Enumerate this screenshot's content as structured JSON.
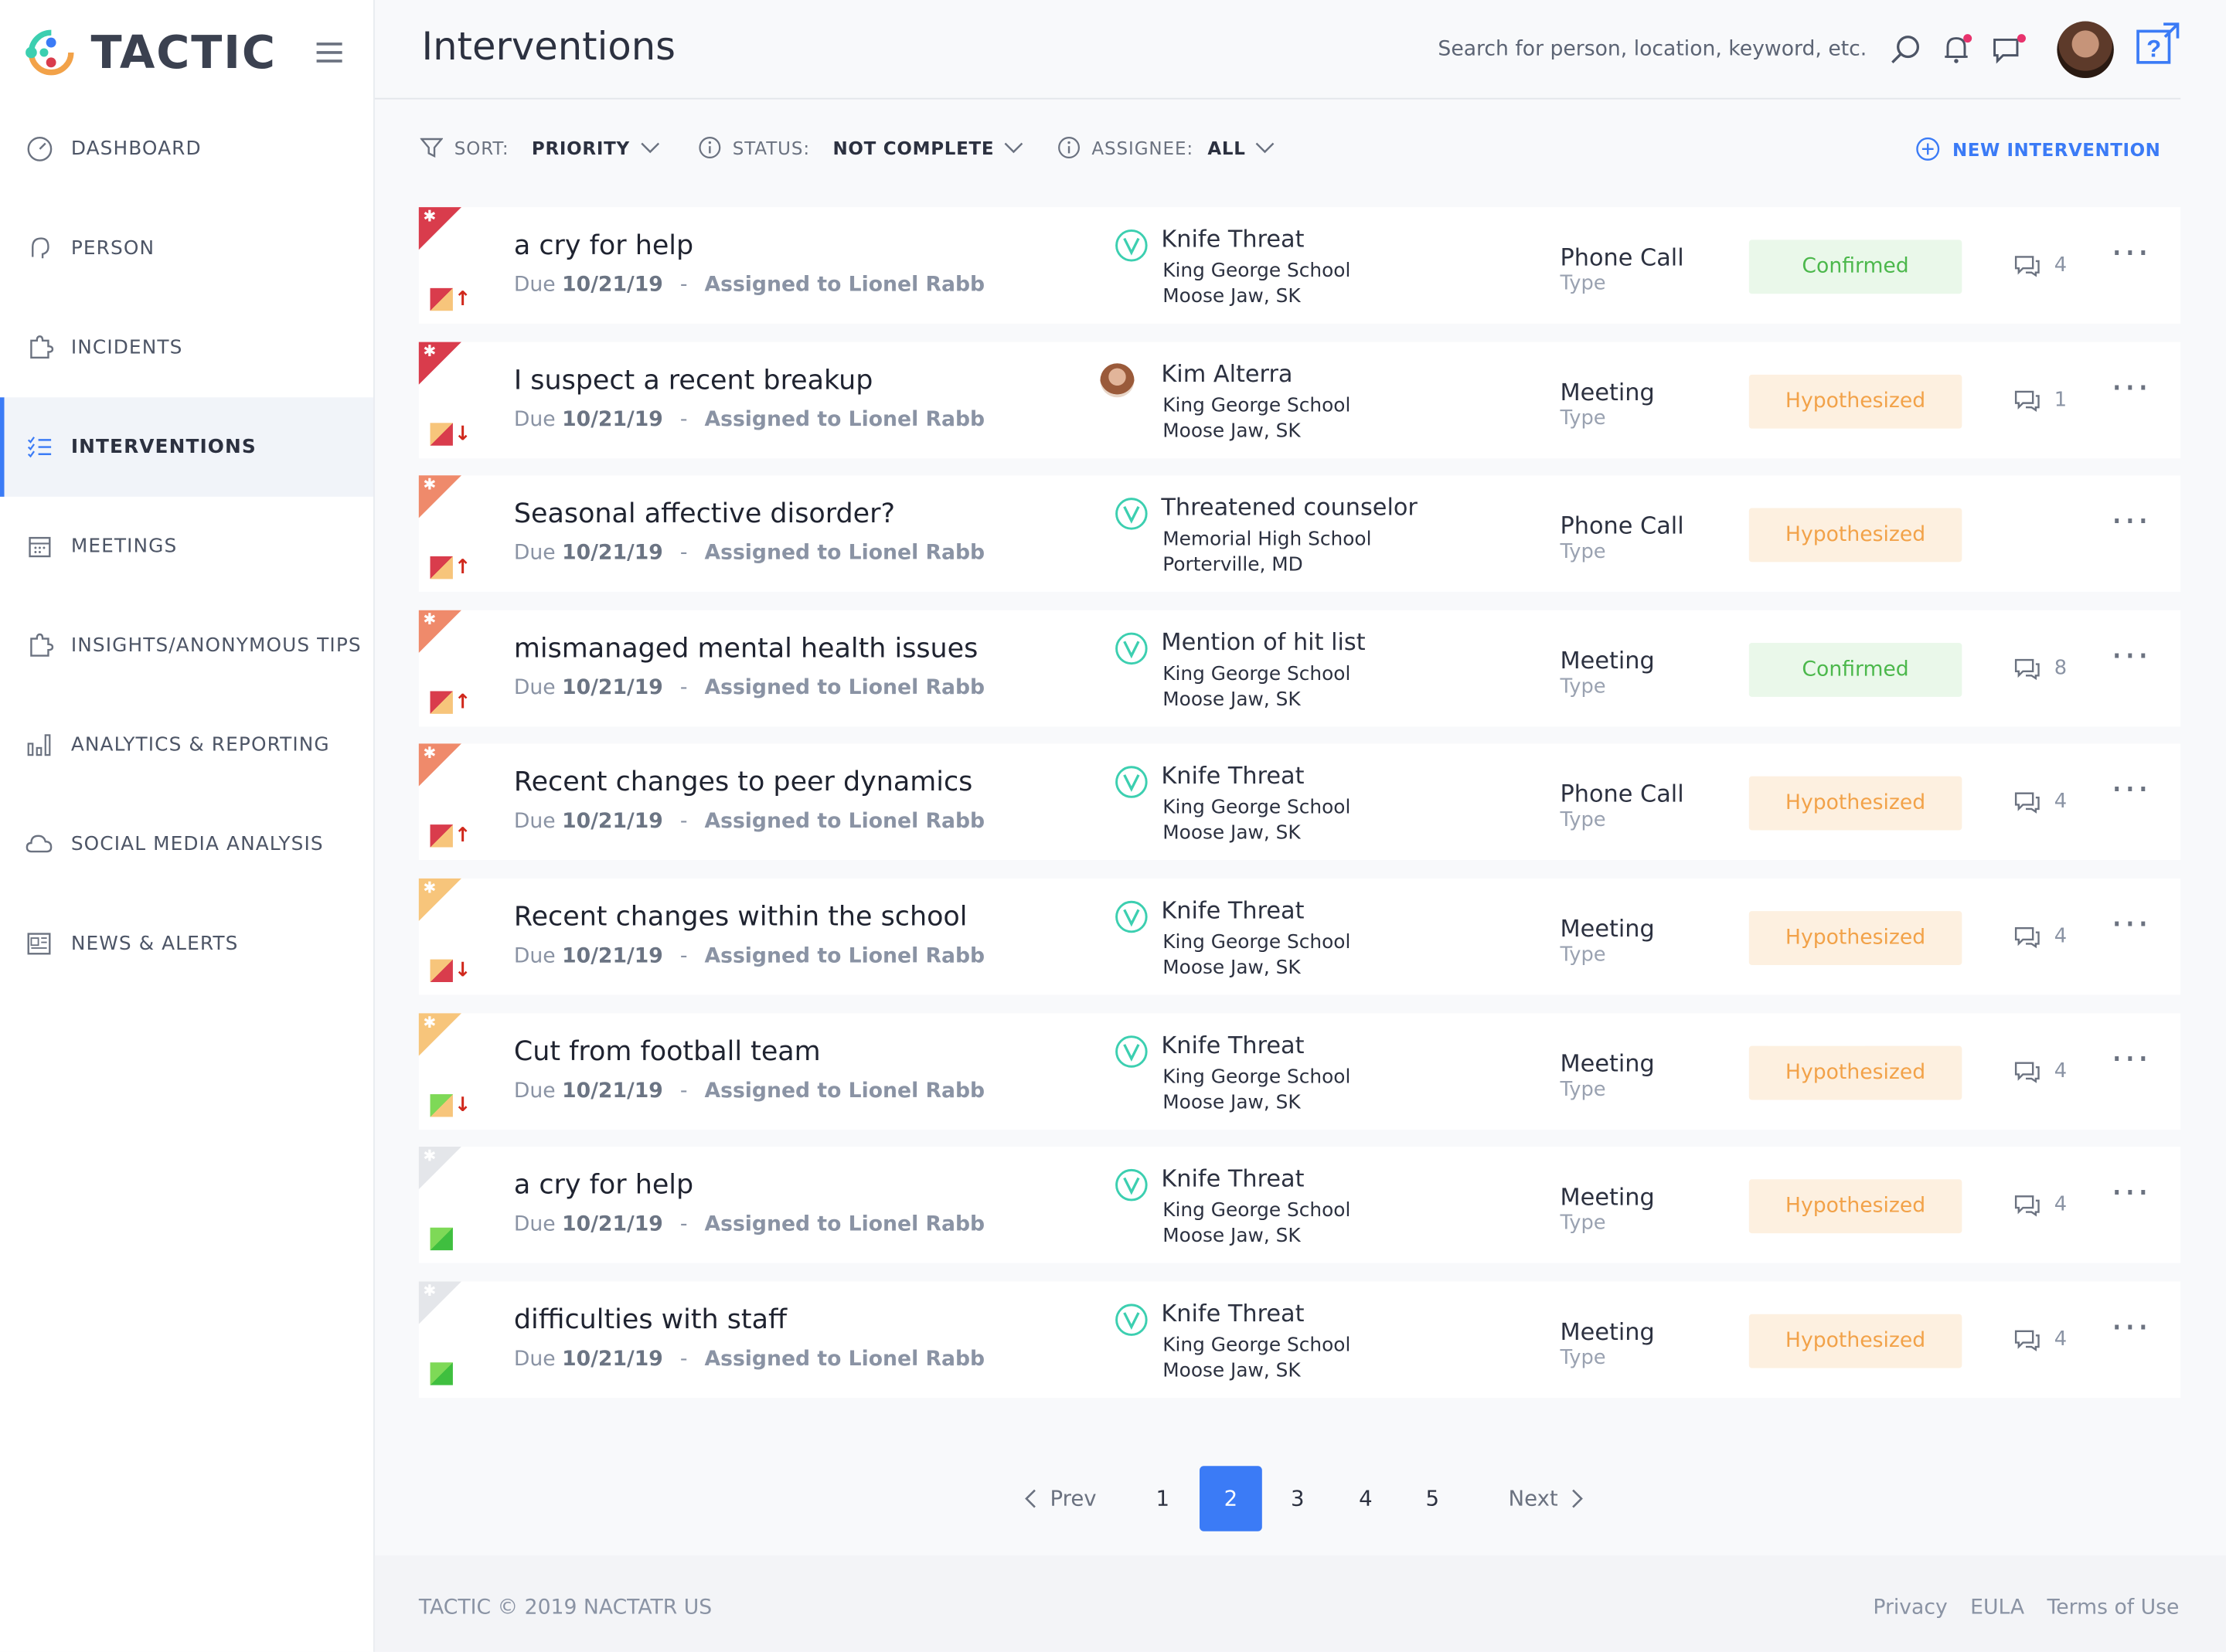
{
  "app": {
    "name": "TACTIC"
  },
  "sidebar": {
    "items": [
      {
        "label": "DASHBOARD",
        "icon": "dashboard-gauge-icon"
      },
      {
        "label": "PERSON",
        "icon": "person-head-icon"
      },
      {
        "label": "INCIDENTS",
        "icon": "incidents-puzzle-icon"
      },
      {
        "label": "INTERVENTIONS",
        "icon": "interventions-list-icon",
        "active": true
      },
      {
        "label": "MEETINGS",
        "icon": "calendar-icon"
      },
      {
        "label": "INSIGHTS/ANONYMOUS TIPS",
        "icon": "insights-puzzle-icon"
      },
      {
        "label": "ANALYTICS & REPORTING",
        "icon": "bar-chart-icon"
      },
      {
        "label": "SOCIAL MEDIA ANALYSIS",
        "icon": "social-cloud-icon"
      },
      {
        "label": "NEWS & ALERTS",
        "icon": "newspaper-icon"
      }
    ]
  },
  "header": {
    "title": "Interventions",
    "search_placeholder": "Search for person, location, keyword, etc."
  },
  "filters": {
    "sort_label": "SORT:",
    "sort_value": "PRIORITY",
    "status_label": "STATUS:",
    "status_value": "NOT COMPLETE",
    "assignee_label": "ASSIGNEE:",
    "assignee_value": "ALL",
    "new_button": "NEW INTERVENTION"
  },
  "colors": {
    "accent": "#3b7bf6",
    "flag_red": "#d93c4c",
    "flag_salmon": "#ef8a6b",
    "flag_yellow": "#f7c57b",
    "flag_grey": "#e4e6ea",
    "confirmed_bg": "#eaf8ea",
    "confirmed_text": "#4cb84c",
    "hypothesized_bg": "#fdf0e0",
    "hypothesized_text": "#f2a249",
    "teal_icon": "#3ccfb0"
  },
  "interventions": [
    {
      "title": "a cry for help",
      "due_prefix": "Due",
      "due": "10/21/19",
      "sep": "-",
      "assigned": "Assigned to Lionel Rabb",
      "flag": "red",
      "severity": "red-yellow",
      "arrow": "↑",
      "incident_icon": "v",
      "incident": "Knife Threat",
      "school": "King George School",
      "location": "Moose Jaw, SK",
      "type": "Phone Call",
      "type_label": "Type",
      "status": "Confirmed",
      "comments": "4"
    },
    {
      "title": "I suspect a recent breakup",
      "due_prefix": "Due",
      "due": "10/21/19",
      "sep": "-",
      "assigned": "Assigned to Lionel Rabb",
      "flag": "red",
      "severity": "yellow-red",
      "arrow": "↓",
      "incident_icon": "avatar",
      "incident": "Kim Alterra",
      "school": "King George School",
      "location": "Moose Jaw, SK",
      "type": "Meeting",
      "type_label": "Type",
      "status": "Hypothesized",
      "comments": "1"
    },
    {
      "title": "Seasonal affective disorder?",
      "due_prefix": "Due",
      "due": "10/21/19",
      "sep": "-",
      "assigned": "Assigned to Lionel Rabb",
      "flag": "salmon",
      "severity": "red-yellow",
      "arrow": "↑",
      "incident_icon": "v",
      "incident": "Threatened counselor",
      "school": "Memorial High School",
      "location": "Porterville, MD",
      "type": "Phone Call",
      "type_label": "Type",
      "status": "Hypothesized",
      "comments": ""
    },
    {
      "title": "mismanaged mental health issues",
      "due_prefix": "Due",
      "due": "10/21/19",
      "sep": "-",
      "assigned": "Assigned to Lionel Rabb",
      "flag": "salmon",
      "severity": "red-yellow",
      "arrow": "↑",
      "incident_icon": "v",
      "incident": "Mention of hit list",
      "school": "King George School",
      "location": "Moose Jaw, SK",
      "type": "Meeting",
      "type_label": "Type",
      "status": "Confirmed",
      "comments": "8"
    },
    {
      "title": "Recent changes to peer dynamics",
      "due_prefix": "Due",
      "due": "10/21/19",
      "sep": "-",
      "assigned": "Assigned to Lionel Rabb",
      "flag": "salmon",
      "severity": "red-yellow",
      "arrow": "↑",
      "incident_icon": "v",
      "incident": "Knife Threat",
      "school": "King George School",
      "location": "Moose Jaw, SK",
      "type": "Phone Call",
      "type_label": "Type",
      "status": "Hypothesized",
      "comments": "4"
    },
    {
      "title": "Recent changes within the school",
      "due_prefix": "Due",
      "due": "10/21/19",
      "sep": "-",
      "assigned": "Assigned to Lionel Rabb",
      "flag": "yellow",
      "severity": "yellow-red",
      "arrow": "↓",
      "incident_icon": "v",
      "incident": "Knife Threat",
      "school": "King George School",
      "location": "Moose Jaw, SK",
      "type": "Meeting",
      "type_label": "Type",
      "status": "Hypothesized",
      "comments": "4"
    },
    {
      "title": "Cut from football team",
      "due_prefix": "Due",
      "due": "10/21/19",
      "sep": "-",
      "assigned": "Assigned to Lionel Rabb",
      "flag": "yellow",
      "severity": "green-yellow",
      "arrow": "↓",
      "incident_icon": "v",
      "incident": "Knife Threat",
      "school": "King George School",
      "location": "Moose Jaw, SK",
      "type": "Meeting",
      "type_label": "Type",
      "status": "Hypothesized",
      "comments": "4"
    },
    {
      "title": "a cry for help",
      "due_prefix": "Due",
      "due": "10/21/19",
      "sep": "-",
      "assigned": "Assigned to Lionel Rabb",
      "flag": "grey",
      "severity": "green",
      "arrow": "",
      "incident_icon": "v",
      "incident": "Knife Threat",
      "school": "King George School",
      "location": "Moose Jaw, SK",
      "type": "Meeting",
      "type_label": "Type",
      "status": "Hypothesized",
      "comments": "4"
    },
    {
      "title": "difficulties with staff",
      "due_prefix": "Due",
      "due": "10/21/19",
      "sep": "-",
      "assigned": "Assigned to Lionel Rabb",
      "flag": "grey",
      "severity": "green",
      "arrow": "",
      "incident_icon": "v",
      "incident": "Knife Threat",
      "school": "King George School",
      "location": "Moose Jaw, SK",
      "type": "Meeting",
      "type_label": "Type",
      "status": "Hypothesized",
      "comments": "4"
    }
  ],
  "pagination": {
    "prev": "Prev",
    "next": "Next",
    "pages": [
      "1",
      "2",
      "3",
      "4",
      "5"
    ],
    "current": "2"
  },
  "footer": {
    "copyright": "TACTIC © 2019 NACTATR US",
    "links": [
      "Privacy",
      "EULA",
      "Terms of Use"
    ]
  }
}
